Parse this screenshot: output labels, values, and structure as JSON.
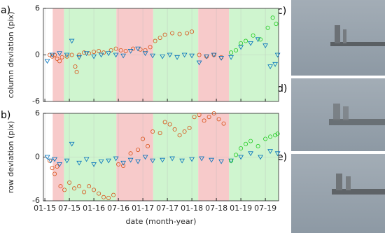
{
  "chart_data": [
    {
      "type": "scatter",
      "label": "a)",
      "y_label": "column deviation (pix)",
      "xlim": [
        2014.97,
        2019.77
      ],
      "ylim": [
        -6,
        6
      ],
      "yticks": [
        -6,
        0,
        6
      ],
      "xticks": [
        2015,
        2015.5,
        2016,
        2016.5,
        2017,
        2017.5,
        2018,
        2018.5,
        2019,
        2019.5
      ],
      "show_xtick_labels": false,
      "grid": true,
      "spans": [
        {
          "start": 2015.16,
          "end": 2015.39,
          "color": "#f7caca"
        },
        {
          "start": 2015.39,
          "end": 2016.46,
          "color": "#cff5cf"
        },
        {
          "start": 2016.46,
          "end": 2017.21,
          "color": "#f7caca"
        },
        {
          "start": 2017.21,
          "end": 2018.13,
          "color": "#cff5cf"
        },
        {
          "start": 2018.13,
          "end": 2018.76,
          "color": "#f7caca"
        },
        {
          "start": 2018.76,
          "end": 2019.77,
          "color": "#cff5cf"
        }
      ],
      "series": [
        {
          "color": "#d95319",
          "marker": "o",
          "x": [
            2015.1,
            2015.15,
            2015.2,
            2015.25,
            2015.3,
            2015.35,
            2015.45,
            2015.55,
            2015.62,
            2015.65,
            2015.7,
            2015.8,
            2015.9,
            2016.0,
            2016.1,
            2016.2,
            2016.35,
            2016.45,
            2016.55,
            2016.65,
            2016.8,
            2016.95,
            2017.05,
            2017.15,
            2017.25,
            2017.35,
            2017.45,
            2017.6,
            2017.75,
            2017.9,
            2018.0,
            2018.15,
            2018.3,
            2018.45,
            2018.6
          ],
          "values": [
            0,
            -0.2,
            0,
            -0.5,
            -0.8,
            -0.3,
            -0.2,
            0,
            -1.5,
            -2.2,
            0,
            0.3,
            0.2,
            0.4,
            0.5,
            0.3,
            0.6,
            0.8,
            0.6,
            0.5,
            0.8,
            0.7,
            0.6,
            1,
            1.8,
            2.2,
            2.6,
            2.8,
            2.7,
            2.8,
            3,
            0,
            -0.2,
            0,
            -0.3
          ]
        },
        {
          "color": "#0072bd",
          "marker": "v",
          "x": [
            2015.05,
            2015.15,
            2015.3,
            2015.45,
            2015.55,
            2015.7,
            2015.85,
            2016.0,
            2016.15,
            2016.3,
            2016.45,
            2016.6,
            2016.75,
            2016.9,
            2017.05,
            2017.2,
            2017.4,
            2017.55,
            2017.7,
            2017.85,
            2018.0,
            2018.15,
            2018.3,
            2018.45,
            2018.6,
            2018.8,
            2019.0,
            2019.2,
            2019.35,
            2019.5,
            2019.6,
            2019.7,
            2019.75
          ],
          "values": [
            -0.8,
            0,
            0.2,
            0,
            1.8,
            -0.3,
            0.2,
            -0.2,
            0,
            0.2,
            0,
            -0.1,
            0.5,
            0.8,
            0.2,
            -0.1,
            -0.2,
            0,
            -0.3,
            0,
            -0.1,
            -1,
            -0.2,
            0,
            -0.4,
            -0.3,
            1,
            1.5,
            2,
            1.2,
            -1.5,
            -1.2,
            0
          ]
        },
        {
          "color": "#22cc22",
          "marker": "o",
          "x": [
            2018.8,
            2018.9,
            2019.0,
            2019.1,
            2019.25,
            2019.4,
            2019.55,
            2019.65,
            2019.72
          ],
          "values": [
            0.3,
            0.6,
            1.5,
            1.8,
            2.5,
            2,
            3.5,
            4.8,
            4
          ]
        }
      ]
    },
    {
      "type": "scatter",
      "label": "b)",
      "y_label": "row deviation (pix)",
      "x_label": "date (month-year)",
      "xlim": [
        2014.97,
        2019.77
      ],
      "ylim": [
        -6,
        6
      ],
      "yticks": [
        -6,
        0,
        6
      ],
      "xticks": [
        {
          "value": 2015,
          "label": "01-15"
        },
        {
          "value": 2015.5,
          "label": "07-15"
        },
        {
          "value": 2016,
          "label": "01-16"
        },
        {
          "value": 2016.5,
          "label": "07-16"
        },
        {
          "value": 2017,
          "label": "01-17"
        },
        {
          "value": 2017.5,
          "label": "07-17"
        },
        {
          "value": 2018,
          "label": "01-18"
        },
        {
          "value": 2018.5,
          "label": "07-18"
        },
        {
          "value": 2019,
          "label": "01-19"
        },
        {
          "value": 2019.5,
          "label": "07-19"
        }
      ],
      "show_xtick_labels": true,
      "grid": true,
      "spans": [
        {
          "start": 2015.16,
          "end": 2015.39,
          "color": "#f7caca"
        },
        {
          "start": 2015.39,
          "end": 2016.46,
          "color": "#cff5cf"
        },
        {
          "start": 2016.46,
          "end": 2017.21,
          "color": "#f7caca"
        },
        {
          "start": 2017.21,
          "end": 2018.13,
          "color": "#cff5cf"
        },
        {
          "start": 2018.13,
          "end": 2018.76,
          "color": "#f7caca"
        },
        {
          "start": 2018.76,
          "end": 2019.77,
          "color": "#cff5cf"
        }
      ],
      "series": [
        {
          "color": "#d95319",
          "marker": "o",
          "x": [
            2015.1,
            2015.15,
            2015.2,
            2015.25,
            2015.32,
            2015.4,
            2015.5,
            2015.6,
            2015.7,
            2015.8,
            2015.9,
            2016.0,
            2016.1,
            2016.2,
            2016.3,
            2016.4,
            2016.5,
            2016.6,
            2016.75,
            2016.9,
            2017.0,
            2017.1,
            2017.2,
            2017.35,
            2017.45,
            2017.55,
            2017.65,
            2017.75,
            2017.85,
            2017.95,
            2018.05,
            2018.15,
            2018.25,
            2018.35,
            2018.45,
            2018.55,
            2018.65
          ],
          "values": [
            -0.5,
            -1.5,
            -2.3,
            -1.3,
            -4,
            -4.5,
            -3.5,
            -4.3,
            -4,
            -4.8,
            -4,
            -4.5,
            -5,
            -5.5,
            -5.6,
            -5.2,
            -1,
            -1.2,
            0.5,
            1,
            2.5,
            1.5,
            3.5,
            3.3,
            4.8,
            4.5,
            3.8,
            3,
            3.5,
            4,
            5.5,
            5.8,
            5,
            5.5,
            6,
            5.2,
            4.6
          ]
        },
        {
          "color": "#0072bd",
          "marker": "v",
          "x": [
            2015.05,
            2015.12,
            2015.2,
            2015.3,
            2015.45,
            2015.55,
            2015.7,
            2015.85,
            2016.0,
            2016.15,
            2016.3,
            2016.45,
            2016.6,
            2016.75,
            2016.9,
            2017.05,
            2017.2,
            2017.4,
            2017.6,
            2017.8,
            2018.0,
            2018.2,
            2018.4,
            2018.6,
            2018.8,
            2019.0,
            2019.2,
            2019.4,
            2019.6,
            2019.75
          ],
          "values": [
            0,
            -0.5,
            -0.3,
            -1,
            -0.5,
            1.8,
            -0.8,
            -0.3,
            -1,
            -0.6,
            -0.5,
            -0.2,
            -0.8,
            -0.4,
            -0.6,
            0,
            -0.5,
            -0.4,
            -0.2,
            -0.5,
            -0.3,
            -0.2,
            -0.4,
            -0.6,
            -0.5,
            0,
            0.5,
            0,
            0.8,
            0.5
          ]
        },
        {
          "color": "#22cc22",
          "marker": "o",
          "x": [
            2018.8,
            2018.9,
            2019.0,
            2019.1,
            2019.2,
            2019.35,
            2019.5,
            2019.6,
            2019.7,
            2019.75
          ],
          "values": [
            -0.5,
            0.3,
            1.2,
            1.8,
            2.2,
            1.5,
            2.5,
            2.8,
            3,
            3.2
          ]
        }
      ]
    }
  ],
  "panels": [
    {
      "label": "c)"
    },
    {
      "label": "d)"
    },
    {
      "label": "e)"
    }
  ]
}
